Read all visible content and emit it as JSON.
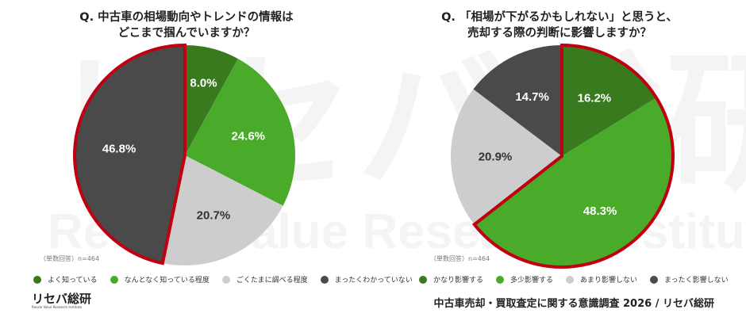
{
  "watermark": {
    "jp": "リセバ総研",
    "en": "Resale Value Research Institute"
  },
  "colors": {
    "dark_green": "#3a7a1f",
    "green": "#4aab2b",
    "light_gray": "#cdcdcd",
    "dark_gray": "#4a4a4a",
    "highlight_outline": "#c00010",
    "label_light": "#ffffff",
    "label_dark": "#333333"
  },
  "left": {
    "title_line1": "Q. 中古車の相場動向やトレンドの情報は",
    "title_line2": "どこまで掴んでいますか？",
    "note": "（単数回答）n=464",
    "legend": [
      {
        "label": "よく知っている",
        "color": "#3a7a1f"
      },
      {
        "label": "なんとなく知っている程度",
        "color": "#4aab2b"
      },
      {
        "label": "ごくたまに調べる程度",
        "color": "#cdcdcd"
      },
      {
        "label": "まったくわかっていない",
        "color": "#4a4a4a"
      }
    ]
  },
  "right": {
    "title_line1": "Q. 「相場が下がるかもしれない」と思うと、",
    "title_line2": "売却する際の判断に影響しますか？",
    "note": "（単数回答）n=464",
    "legend": [
      {
        "label": "かなり影響する",
        "color": "#3a7a1f"
      },
      {
        "label": "多少影響する",
        "color": "#4aab2b"
      },
      {
        "label": "あまり影響しない",
        "color": "#cdcdcd"
      },
      {
        "label": "まったく影響しない",
        "color": "#4a4a4a"
      }
    ]
  },
  "logo": {
    "jp": "リセバ総研",
    "en": "Resale Value Research Institute"
  },
  "footer": "中古車売却・買取査定に関する意識調査 2026 / リセバ総研",
  "chart_data": [
    {
      "type": "pie",
      "title": "Q. 中古車の相場動向やトレンドの情報はどこまで掴んでいますか？",
      "categories": [
        "よく知っている",
        "なんとなく知っている程度",
        "ごくたまに調べる程度",
        "まったくわかっていない"
      ],
      "values": [
        8.0,
        24.6,
        20.7,
        46.8
      ],
      "labels": [
        "8.0%",
        "24.6%",
        "20.7%",
        "46.8%"
      ],
      "colors": [
        "#3a7a1f",
        "#4aab2b",
        "#cdcdcd",
        "#4a4a4a"
      ],
      "highlighted": [
        "まったくわかっていない"
      ],
      "start_angle": "12 o'clock, clockwise",
      "note": "（単数回答）n=464",
      "legend_position": "bottom"
    },
    {
      "type": "pie",
      "title": "Q. 「相場が下がるかもしれない」と思うと、売却する際の判断に影響しますか？",
      "categories": [
        "かなり影響する",
        "多少影響する",
        "あまり影響しない",
        "まったく影響しない"
      ],
      "values": [
        16.2,
        48.3,
        20.9,
        14.7
      ],
      "labels": [
        "16.2%",
        "48.3%",
        "20.9%",
        "14.7%"
      ],
      "colors": [
        "#3a7a1f",
        "#4aab2b",
        "#cdcdcd",
        "#4a4a4a"
      ],
      "highlighted": [
        "かなり影響する",
        "多少影響する"
      ],
      "start_angle": "12 o'clock, clockwise",
      "note": "（単数回答）n=464",
      "legend_position": "bottom"
    }
  ]
}
